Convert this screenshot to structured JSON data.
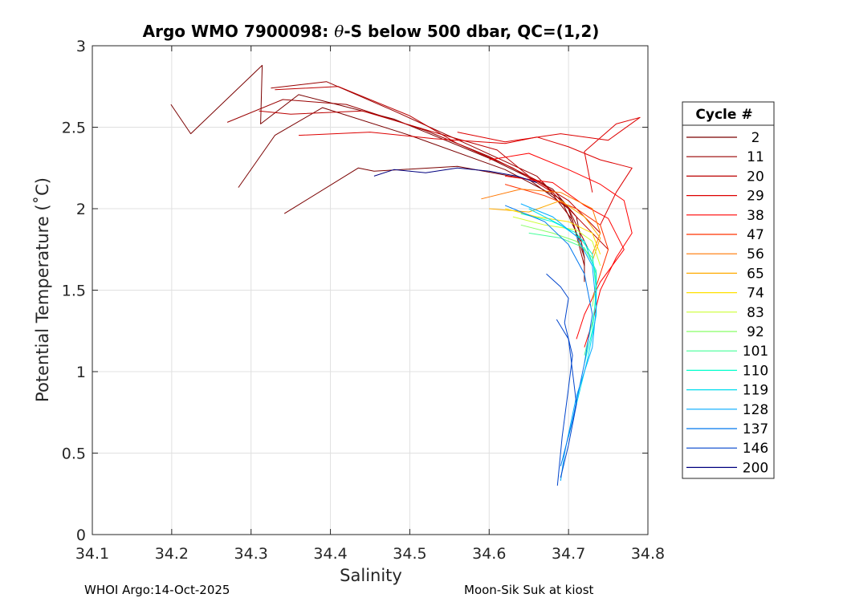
{
  "figure": {
    "title_prefix": "Argo WMO 7900098: ",
    "title_theta": "θ",
    "title_suffix": "-S below 500 dbar,  QC=(1,2)",
    "footer_left": "WHOI Argo:14-Oct-2025",
    "footer_right": "Moon-Sik Suk at kiost"
  },
  "chart_data": {
    "type": "line",
    "title": "Argo WMO 7900098: θ-S below 500 dbar,  QC=(1,2)",
    "xlabel": "Salinity",
    "ylabel": "Potential Temperature (˚C)",
    "xlim": [
      34.1,
      34.8
    ],
    "ylim": [
      0,
      3
    ],
    "grid": true,
    "x_ticks": [
      34.1,
      34.2,
      34.3,
      34.4,
      34.5,
      34.6,
      34.7,
      34.8
    ],
    "x_tick_labels": [
      "34.1",
      "34.2",
      "34.3",
      "34.4",
      "34.5",
      "34.6",
      "34.7",
      "34.8"
    ],
    "y_ticks": [
      0,
      0.5,
      1,
      1.5,
      2,
      2.5,
      3
    ],
    "y_tick_labels": [
      "0",
      "0.5",
      "1",
      "1.5",
      "2",
      "2.5",
      "3"
    ],
    "legend": {
      "title": "Cycle #",
      "placement": "right-outside",
      "entries": [
        {
          "label": "2",
          "color": "#7a0000"
        },
        {
          "label": "11",
          "color": "#990000"
        },
        {
          "label": "20",
          "color": "#bb0000"
        },
        {
          "label": "29",
          "color": "#dd0000"
        },
        {
          "label": "38",
          "color": "#ff0000"
        },
        {
          "label": "47",
          "color": "#ff3300"
        },
        {
          "label": "56",
          "color": "#ff7700"
        },
        {
          "label": "65",
          "color": "#ffaa00"
        },
        {
          "label": "74",
          "color": "#ffe000"
        },
        {
          "label": "83",
          "color": "#ccff33"
        },
        {
          "label": "92",
          "color": "#88ff66"
        },
        {
          "label": "101",
          "color": "#44ff99"
        },
        {
          "label": "110",
          "color": "#00ffcc"
        },
        {
          "label": "119",
          "color": "#00ddee"
        },
        {
          "label": "128",
          "color": "#00aaff"
        },
        {
          "label": "137",
          "color": "#0077ee"
        },
        {
          "label": "146",
          "color": "#0044cc"
        },
        {
          "label": "200",
          "color": "#00007f"
        }
      ]
    },
    "series": [
      {
        "name": "2",
        "color": "#7a0000",
        "points": [
          [
            34.199,
            2.64
          ],
          [
            34.224,
            2.46
          ],
          [
            34.314,
            2.88
          ],
          [
            34.312,
            2.52
          ],
          [
            34.36,
            2.7
          ],
          [
            34.48,
            2.55
          ],
          [
            34.6,
            2.31
          ],
          [
            34.68,
            2.12
          ],
          [
            34.71,
            1.95
          ],
          [
            34.72,
            1.7
          ],
          [
            34.72,
            1.55
          ]
        ]
      },
      {
        "name": "2b",
        "color": "#7a0000",
        "points": [
          [
            34.342,
            1.97
          ],
          [
            34.435,
            2.25
          ],
          [
            34.455,
            2.23
          ],
          [
            34.56,
            2.26
          ],
          [
            34.65,
            2.18
          ],
          [
            34.7,
            2.0
          ],
          [
            34.72,
            1.7
          ]
        ]
      },
      {
        "name": "2c",
        "color": "#7a0000",
        "points": [
          [
            34.284,
            2.13
          ],
          [
            34.33,
            2.45
          ],
          [
            34.39,
            2.62
          ],
          [
            34.5,
            2.45
          ],
          [
            34.62,
            2.24
          ],
          [
            34.69,
            2.06
          ],
          [
            34.715,
            1.8
          ]
        ]
      },
      {
        "name": "11",
        "color": "#990000",
        "points": [
          [
            34.27,
            2.53
          ],
          [
            34.34,
            2.67
          ],
          [
            34.42,
            2.64
          ],
          [
            34.52,
            2.48
          ],
          [
            34.6,
            2.32
          ],
          [
            34.67,
            2.15
          ],
          [
            34.705,
            1.93
          ],
          [
            34.72,
            1.65
          ]
        ]
      },
      {
        "name": "11b",
        "color": "#990000",
        "points": [
          [
            34.325,
            2.74
          ],
          [
            34.395,
            2.78
          ],
          [
            34.48,
            2.6
          ],
          [
            34.58,
            2.38
          ],
          [
            34.66,
            2.2
          ],
          [
            34.7,
            2.0
          ],
          [
            34.725,
            1.75
          ]
        ]
      },
      {
        "name": "20",
        "color": "#bb0000",
        "points": [
          [
            34.33,
            2.73
          ],
          [
            34.41,
            2.75
          ],
          [
            34.5,
            2.57
          ],
          [
            34.56,
            2.4
          ],
          [
            34.63,
            2.25
          ],
          [
            34.68,
            2.1
          ],
          [
            34.72,
            1.9
          ],
          [
            34.75,
            1.75
          ]
        ]
      },
      {
        "name": "20b",
        "color": "#bb0000",
        "points": [
          [
            34.31,
            2.6
          ],
          [
            34.35,
            2.58
          ],
          [
            34.44,
            2.6
          ],
          [
            34.53,
            2.47
          ],
          [
            34.61,
            2.36
          ],
          [
            34.65,
            2.2
          ],
          [
            34.7,
            2.05
          ],
          [
            34.74,
            1.85
          ]
        ]
      },
      {
        "name": "29",
        "color": "#dd0000",
        "points": [
          [
            34.36,
            2.45
          ],
          [
            34.45,
            2.47
          ],
          [
            34.53,
            2.43
          ],
          [
            34.62,
            2.4
          ],
          [
            34.66,
            2.44
          ],
          [
            34.7,
            2.38
          ],
          [
            34.74,
            2.3
          ],
          [
            34.78,
            2.25
          ],
          [
            34.76,
            2.1
          ],
          [
            34.74,
            1.9
          ]
        ]
      },
      {
        "name": "29b",
        "color": "#dd0000",
        "points": [
          [
            34.56,
            2.47
          ],
          [
            34.62,
            2.41
          ],
          [
            34.69,
            2.46
          ],
          [
            34.75,
            2.42
          ],
          [
            34.79,
            2.56
          ],
          [
            34.76,
            2.52
          ],
          [
            34.72,
            2.35
          ],
          [
            34.73,
            2.1
          ]
        ]
      },
      {
        "name": "38",
        "color": "#ff0000",
        "points": [
          [
            34.6,
            2.3
          ],
          [
            34.65,
            2.34
          ],
          [
            34.7,
            2.24
          ],
          [
            34.74,
            2.15
          ],
          [
            34.77,
            2.05
          ],
          [
            34.78,
            1.85
          ],
          [
            34.76,
            1.7
          ],
          [
            34.74,
            1.5
          ],
          [
            34.73,
            1.3
          ],
          [
            34.72,
            1.15
          ]
        ]
      },
      {
        "name": "38b",
        "color": "#ff0000",
        "points": [
          [
            34.62,
            2.2
          ],
          [
            34.68,
            2.16
          ],
          [
            34.72,
            2.02
          ],
          [
            34.75,
            1.94
          ],
          [
            34.77,
            1.75
          ],
          [
            34.74,
            1.55
          ],
          [
            34.72,
            1.35
          ],
          [
            34.71,
            1.2
          ]
        ]
      },
      {
        "name": "47",
        "color": "#ff3300",
        "points": [
          [
            34.62,
            2.15
          ],
          [
            34.67,
            2.08
          ],
          [
            34.71,
            2.0
          ],
          [
            34.74,
            1.9
          ],
          [
            34.75,
            1.75
          ],
          [
            34.74,
            1.6
          ],
          [
            34.73,
            1.45
          ]
        ]
      },
      {
        "name": "56",
        "color": "#ff7700",
        "points": [
          [
            34.59,
            2.06
          ],
          [
            34.64,
            2.12
          ],
          [
            34.69,
            2.1
          ],
          [
            34.73,
            2.0
          ],
          [
            34.74,
            1.85
          ],
          [
            34.73,
            1.72
          ]
        ]
      },
      {
        "name": "65",
        "color": "#ffaa00",
        "points": [
          [
            34.6,
            2.0
          ],
          [
            34.65,
            1.98
          ],
          [
            34.69,
            2.05
          ],
          [
            34.72,
            1.95
          ],
          [
            34.74,
            1.82
          ],
          [
            34.73,
            1.68
          ]
        ]
      },
      {
        "name": "74",
        "color": "#ffe000",
        "points": [
          [
            34.62,
            2.0
          ],
          [
            34.66,
            1.95
          ],
          [
            34.7,
            1.92
          ],
          [
            34.73,
            1.85
          ],
          [
            34.74,
            1.72
          ]
        ]
      },
      {
        "name": "83",
        "color": "#ccff33",
        "points": [
          [
            34.63,
            1.95
          ],
          [
            34.67,
            1.9
          ],
          [
            34.71,
            1.87
          ],
          [
            34.73,
            1.8
          ],
          [
            34.74,
            1.65
          ]
        ]
      },
      {
        "name": "92",
        "color": "#88ff66",
        "points": [
          [
            34.64,
            1.9
          ],
          [
            34.68,
            1.85
          ],
          [
            34.71,
            1.8
          ],
          [
            34.73,
            1.7
          ],
          [
            34.735,
            1.55
          ],
          [
            34.73,
            1.4
          ]
        ]
      },
      {
        "name": "101",
        "color": "#44ff99",
        "points": [
          [
            34.65,
            1.85
          ],
          [
            34.69,
            1.82
          ],
          [
            34.72,
            1.76
          ],
          [
            34.735,
            1.62
          ],
          [
            34.735,
            1.45
          ],
          [
            34.73,
            1.3
          ],
          [
            34.72,
            1.1
          ]
        ]
      },
      {
        "name": "110",
        "color": "#00ffcc",
        "points": [
          [
            34.64,
            1.97
          ],
          [
            34.68,
            1.92
          ],
          [
            34.71,
            1.85
          ],
          [
            34.73,
            1.72
          ],
          [
            34.735,
            1.5
          ],
          [
            34.73,
            1.25
          ],
          [
            34.72,
            1.05
          ]
        ]
      },
      {
        "name": "119",
        "color": "#00ddee",
        "points": [
          [
            34.65,
            2.0
          ],
          [
            34.69,
            1.9
          ],
          [
            34.72,
            1.8
          ],
          [
            34.735,
            1.6
          ],
          [
            34.735,
            1.35
          ],
          [
            34.725,
            1.1
          ],
          [
            34.71,
            0.8
          ],
          [
            34.7,
            0.6
          ]
        ]
      },
      {
        "name": "128",
        "color": "#00aaff",
        "points": [
          [
            34.64,
            2.03
          ],
          [
            34.68,
            1.95
          ],
          [
            34.71,
            1.83
          ],
          [
            34.73,
            1.65
          ],
          [
            34.735,
            1.4
          ],
          [
            34.73,
            1.15
          ],
          [
            34.71,
            0.85
          ],
          [
            34.695,
            0.5
          ],
          [
            34.69,
            0.33
          ]
        ]
      },
      {
        "name": "137",
        "color": "#0077ee",
        "points": [
          [
            34.62,
            2.02
          ],
          [
            34.67,
            1.92
          ],
          [
            34.7,
            1.78
          ],
          [
            34.72,
            1.6
          ],
          [
            34.73,
            1.35
          ],
          [
            34.72,
            1.05
          ],
          [
            34.705,
            0.7
          ],
          [
            34.69,
            0.42
          ]
        ]
      },
      {
        "name": "146",
        "color": "#0044cc",
        "points": [
          [
            34.672,
            1.6
          ],
          [
            34.69,
            1.52
          ],
          [
            34.7,
            1.45
          ],
          [
            34.695,
            1.3
          ],
          [
            34.705,
            1.1
          ],
          [
            34.7,
            0.9
          ],
          [
            34.692,
            0.6
          ],
          [
            34.686,
            0.3
          ]
        ]
      },
      {
        "name": "146b",
        "color": "#0044cc",
        "points": [
          [
            34.685,
            1.32
          ],
          [
            34.7,
            1.2
          ],
          [
            34.705,
            1.0
          ],
          [
            34.71,
            0.8
          ],
          [
            34.7,
            0.55
          ],
          [
            34.69,
            0.35
          ]
        ]
      },
      {
        "name": "200",
        "color": "#00007f",
        "points": [
          [
            34.455,
            2.2
          ],
          [
            34.48,
            2.24
          ],
          [
            34.52,
            2.22
          ],
          [
            34.56,
            2.25
          ],
          [
            34.6,
            2.23
          ],
          [
            34.635,
            2.2
          ],
          [
            34.66,
            2.16
          ]
        ]
      }
    ]
  }
}
